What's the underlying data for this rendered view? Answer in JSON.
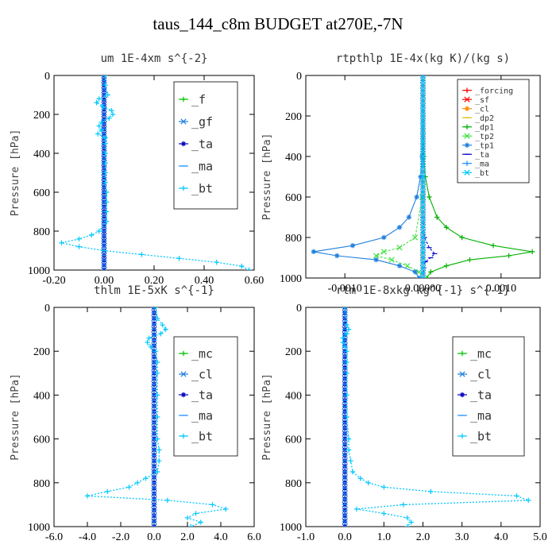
{
  "figure_title": "taus_144_c8m  BUDGET at270E,-7N",
  "chart_data": [
    {
      "type": "line",
      "title": "um  1E-4xm s^{-2}",
      "xlabel": "",
      "ylabel": "Pressure [hPa]",
      "xlim": [
        -0.2,
        0.6
      ],
      "ylim": [
        1000,
        0
      ],
      "xticks": [
        "-0.20",
        "0.00",
        "0.20",
        "0.40",
        "0.60"
      ],
      "xtick_values": [
        -0.2,
        0.0,
        0.2,
        0.4,
        0.6
      ],
      "yticks": [
        "0",
        "200",
        "400",
        "600",
        "800",
        "1000"
      ],
      "ytick_values": [
        0,
        200,
        400,
        600,
        800,
        1000
      ],
      "legend": [
        "_f",
        "_gf",
        "_ta",
        "_ma",
        "_bt"
      ],
      "legend_position": "top-right",
      "series": [
        {
          "name": "_f",
          "color": "#00c000",
          "p": [
            0,
            100,
            200,
            300,
            400,
            500,
            600,
            700,
            800,
            900,
            1000
          ],
          "values": [
            0,
            0,
            0,
            0,
            0,
            0,
            0,
            0,
            0,
            0,
            0
          ]
        },
        {
          "name": "_gf",
          "color": "#1f7fe0",
          "p": [
            0,
            100,
            200,
            300,
            400,
            500,
            600,
            700,
            800,
            900,
            1000
          ],
          "values": [
            0,
            0,
            0,
            0,
            0,
            0,
            0,
            0,
            0,
            0,
            0
          ]
        },
        {
          "name": "_ta",
          "color": "#0000c0",
          "p": [
            0,
            100,
            200,
            300,
            400,
            500,
            600,
            700,
            800,
            900,
            1000
          ],
          "values": [
            0,
            0,
            0,
            0,
            0,
            0,
            0,
            0,
            0,
            0,
            0
          ]
        },
        {
          "name": "_ma",
          "color": "#1e90ff",
          "p": [
            0,
            100,
            200,
            300,
            400,
            500,
            600,
            700,
            800,
            900,
            1000
          ],
          "values": [
            0,
            0,
            0,
            0,
            0,
            0,
            0,
            0,
            0,
            0,
            0
          ]
        },
        {
          "name": "_bt",
          "color": "#00c8ff",
          "p": [
            0,
            50,
            100,
            120,
            140,
            160,
            180,
            200,
            220,
            240,
            260,
            280,
            300,
            320,
            350,
            400,
            450,
            500,
            550,
            600,
            650,
            700,
            750,
            800,
            820,
            840,
            860,
            880,
            900,
            920,
            940,
            960,
            980,
            1000
          ],
          "values": [
            0.005,
            0.005,
            0.015,
            -0.02,
            -0.03,
            -0.005,
            0.03,
            0.035,
            0.02,
            -0.01,
            -0.02,
            -0.01,
            -0.025,
            0.005,
            0.005,
            0.005,
            0.005,
            0.005,
            0.005,
            0.01,
            0.01,
            0.01,
            0.01,
            -0.02,
            -0.05,
            -0.1,
            -0.17,
            -0.1,
            0.0,
            0.15,
            0.3,
            0.45,
            0.55,
            0.58
          ]
        }
      ]
    },
    {
      "type": "line",
      "title": "rtpthlp  1E-4x(kg K)/(kg s)",
      "xlabel": "",
      "ylabel": "Pressure [hPa]",
      "xlim": [
        -0.0015,
        0.0015
      ],
      "ylim": [
        1000,
        0
      ],
      "xticks": [
        "-0.0010",
        "0.00000",
        "0.0010"
      ],
      "xtick_values": [
        -0.001,
        0.0,
        0.001
      ],
      "yticks": [
        "0",
        "200",
        "400",
        "600",
        "800",
        "1000"
      ],
      "ytick_values": [
        0,
        200,
        400,
        600,
        800,
        1000
      ],
      "legend": [
        "_forcing",
        "_sf",
        "_cl",
        "_dp2",
        "_dp1",
        "_tp2",
        "_tp1",
        "_ta",
        "_ma",
        "_bt"
      ],
      "legend_position": "top-right",
      "series": [
        {
          "name": "_forcing",
          "color": "#ff0000",
          "p": [
            0,
            1000
          ],
          "values": [
            0,
            0
          ]
        },
        {
          "name": "_sf",
          "color": "#ff0000",
          "p": [
            0,
            1000
          ],
          "values": [
            0,
            0
          ]
        },
        {
          "name": "_cl",
          "color": "#ff8c00",
          "p": [
            0,
            1000
          ],
          "values": [
            0,
            0
          ]
        },
        {
          "name": "_dp2",
          "color": "#e0c000",
          "p": [
            0,
            1000
          ],
          "values": [
            0,
            0
          ]
        },
        {
          "name": "_dp1",
          "color": "#00b000",
          "p": [
            0,
            400,
            500,
            600,
            700,
            750,
            800,
            840,
            870,
            890,
            910,
            940,
            970,
            1000
          ],
          "values": [
            0,
            1e-05,
            3e-05,
            8e-05,
            0.00018,
            0.0003,
            0.0005,
            0.0009,
            0.0014,
            0.0011,
            0.0006,
            0.0003,
            0.0001,
            5e-05
          ]
        },
        {
          "name": "_tp2",
          "color": "#40e040",
          "p": [
            0,
            400,
            600,
            800,
            850,
            870,
            890,
            910,
            940,
            970,
            1000
          ],
          "values": [
            0,
            0,
            -1e-05,
            -0.0001,
            -0.0003,
            -0.0005,
            -0.0006,
            -0.0004,
            -0.0002,
            -5e-05,
            0
          ]
        },
        {
          "name": "_tp1",
          "color": "#1f7fe0",
          "p": [
            0,
            400,
            500,
            600,
            700,
            750,
            800,
            840,
            870,
            890,
            910,
            940,
            970,
            1000
          ],
          "values": [
            0,
            -1e-05,
            -3e-05,
            -8e-05,
            -0.00018,
            -0.0003,
            -0.0005,
            -0.0009,
            -0.0014,
            -0.0011,
            -0.0006,
            -0.0003,
            -0.0001,
            -5e-05
          ]
        },
        {
          "name": "_ta",
          "color": "#0000d0",
          "p": [
            0,
            700,
            800,
            850,
            880,
            900,
            920,
            950,
            1000
          ],
          "values": [
            0,
            0,
            2e-05,
            8e-05,
            0.00015,
            0.0001,
            3e-05,
            1e-05,
            0
          ]
        },
        {
          "name": "_ma",
          "color": "#1e90ff",
          "p": [
            0,
            1000
          ],
          "values": [
            0,
            0
          ]
        },
        {
          "name": "_bt",
          "color": "#00c8ff",
          "p": [
            0,
            1000
          ],
          "values": [
            0,
            0
          ]
        }
      ]
    },
    {
      "type": "line",
      "title": "thlm  1E-5xK s^{-1}",
      "xlabel": "",
      "ylabel": "Pressure [hPa]",
      "xlim": [
        -6.0,
        6.0
      ],
      "ylim": [
        1000,
        0
      ],
      "xticks": [
        "-6.0",
        "-4.0",
        "-2.0",
        "0.0",
        "2.0",
        "4.0",
        "6.0"
      ],
      "xtick_values": [
        -6.0,
        -4.0,
        -2.0,
        0.0,
        2.0,
        4.0,
        6.0
      ],
      "yticks": [
        "0",
        "200",
        "400",
        "600",
        "800",
        "1000"
      ],
      "ytick_values": [
        0,
        200,
        400,
        600,
        800,
        1000
      ],
      "legend": [
        "_mc",
        "_cl",
        "_ta",
        "_ma",
        "_bt"
      ],
      "legend_position": "top-right",
      "series": [
        {
          "name": "_mc",
          "color": "#00c000",
          "p": [
            0,
            100,
            200,
            300,
            400,
            500,
            600,
            700,
            800,
            900,
            1000
          ],
          "values": [
            0,
            0,
            0,
            0,
            0,
            0,
            0,
            0,
            0,
            0,
            0
          ]
        },
        {
          "name": "_cl",
          "color": "#1f7fe0",
          "p": [
            0,
            100,
            200,
            300,
            400,
            500,
            600,
            700,
            800,
            900,
            1000
          ],
          "values": [
            0,
            0,
            0,
            0,
            0,
            0,
            0,
            0,
            0,
            0,
            0
          ]
        },
        {
          "name": "_ta",
          "color": "#0000c0",
          "p": [
            0,
            100,
            200,
            300,
            400,
            500,
            600,
            700,
            800,
            900,
            1000
          ],
          "values": [
            0,
            0,
            0,
            0,
            0,
            0,
            0,
            0,
            0,
            0,
            0
          ]
        },
        {
          "name": "_ma",
          "color": "#1e90ff",
          "p": [
            0,
            100,
            200,
            300,
            400,
            500,
            600,
            700,
            800,
            900,
            1000
          ],
          "values": [
            0,
            0,
            0,
            0,
            0,
            0,
            0,
            0,
            0,
            0,
            0
          ]
        },
        {
          "name": "_bt",
          "color": "#00c8ff",
          "p": [
            0,
            50,
            80,
            100,
            120,
            140,
            160,
            180,
            200,
            250,
            300,
            400,
            500,
            600,
            650,
            700,
            750,
            780,
            800,
            820,
            840,
            860,
            880,
            900,
            920,
            940,
            960,
            980,
            1000
          ],
          "values": [
            0.1,
            0.2,
            0.5,
            0.7,
            0.4,
            -0.3,
            -0.4,
            -0.2,
            0.1,
            0.2,
            0.2,
            0.2,
            0.2,
            0.2,
            0.3,
            0.3,
            0.2,
            -0.5,
            -1.0,
            -1.5,
            -2.8,
            -4.0,
            0.8,
            3.5,
            4.3,
            2.5,
            2.0,
            2.8,
            2.2
          ]
        }
      ]
    },
    {
      "type": "line",
      "title": "rtm  1E-8xkg kg^{-1} s^{-1}",
      "xlabel": "",
      "ylabel": "Pressure [hPa]",
      "xlim": [
        -1.0,
        5.0
      ],
      "ylim": [
        1000,
        0
      ],
      "xticks": [
        "-1.0",
        "0.0",
        "1.0",
        "2.0",
        "3.0",
        "4.0",
        "5.0"
      ],
      "xtick_values": [
        -1.0,
        0.0,
        1.0,
        2.0,
        3.0,
        4.0,
        5.0
      ],
      "yticks": [
        "0",
        "200",
        "400",
        "600",
        "800",
        "1000"
      ],
      "ytick_values": [
        0,
        200,
        400,
        600,
        800,
        1000
      ],
      "legend": [
        "_mc",
        "_cl",
        "_ta",
        "_ma",
        "_bt"
      ],
      "legend_position": "top-right",
      "series": [
        {
          "name": "_mc",
          "color": "#00c000",
          "p": [
            0,
            100,
            200,
            300,
            400,
            500,
            600,
            700,
            800,
            900,
            1000
          ],
          "values": [
            0,
            0,
            0,
            0,
            0,
            0,
            0,
            0,
            0,
            0,
            0
          ]
        },
        {
          "name": "_cl",
          "color": "#1f7fe0",
          "p": [
            0,
            100,
            200,
            300,
            400,
            500,
            600,
            700,
            800,
            900,
            1000
          ],
          "values": [
            0,
            0,
            0,
            0,
            0,
            0,
            0,
            0,
            0,
            0,
            0
          ]
        },
        {
          "name": "_ta",
          "color": "#0000c0",
          "p": [
            0,
            100,
            200,
            300,
            400,
            500,
            600,
            700,
            800,
            900,
            1000
          ],
          "values": [
            0,
            0,
            0,
            0,
            0,
            0,
            0,
            0,
            0,
            0,
            0
          ]
        },
        {
          "name": "_ma",
          "color": "#1e90ff",
          "p": [
            0,
            100,
            200,
            300,
            400,
            500,
            600,
            700,
            800,
            900,
            1000
          ],
          "values": [
            0,
            0,
            0,
            0,
            0,
            0,
            0,
            0,
            0,
            0,
            0
          ]
        },
        {
          "name": "_bt",
          "color": "#00c8ff",
          "p": [
            0,
            80,
            100,
            120,
            140,
            160,
            180,
            200,
            250,
            300,
            400,
            500,
            600,
            650,
            700,
            750,
            780,
            800,
            820,
            840,
            860,
            880,
            900,
            920,
            940,
            960,
            980,
            1000
          ],
          "values": [
            0.0,
            0.05,
            0.1,
            0.05,
            -0.05,
            -0.05,
            0.0,
            0.05,
            0.05,
            0.05,
            0.05,
            0.05,
            0.1,
            0.1,
            0.15,
            0.2,
            0.4,
            0.6,
            1.0,
            2.2,
            4.4,
            4.7,
            1.5,
            0.3,
            1.0,
            1.6,
            1.7,
            1.6
          ]
        }
      ]
    }
  ]
}
